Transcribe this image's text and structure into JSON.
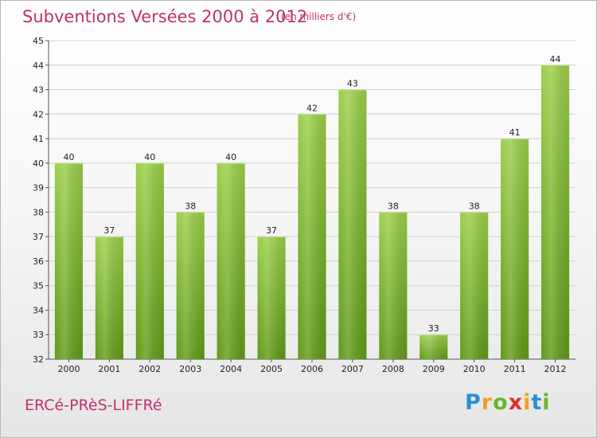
{
  "header": {
    "title": "Subventions Versées 2000 à 2012",
    "subtitle": "(en milliers d'€)"
  },
  "footer": {
    "commune": "ERCé-PRèS-LIFFRé",
    "logo_letters": [
      "P",
      "r",
      "o",
      "x",
      "i",
      "t",
      "i"
    ],
    "logo_colors": [
      "#2a8fd8",
      "#f0a020",
      "#6cb52d",
      "#e03030",
      "#f0a020",
      "#2a8fd8",
      "#6cb52d"
    ]
  },
  "chart_data": {
    "type": "bar",
    "title": "Subventions Versées 2000 à 2012",
    "subtitle": "(en milliers d'€)",
    "categories": [
      "2000",
      "2001",
      "2002",
      "2003",
      "2004",
      "2005",
      "2006",
      "2007",
      "2008",
      "2009",
      "2010",
      "2011",
      "2012"
    ],
    "values": [
      40,
      37,
      40,
      38,
      40,
      37,
      42,
      43,
      38,
      33,
      38,
      41,
      44
    ],
    "data_labels": [
      "40",
      "37",
      "40",
      "38",
      "40",
      "37",
      "42",
      "43",
      "38",
      "33",
      "38",
      "41",
      "44"
    ],
    "ylim": [
      32,
      45
    ],
    "yticks": [
      32,
      33,
      34,
      35,
      36,
      37,
      38,
      39,
      40,
      41,
      42,
      43,
      44,
      45
    ],
    "ytick_labels": [
      "32",
      "33",
      "34",
      "35",
      "36",
      "37",
      "38",
      "39",
      "40",
      "41",
      "42",
      "43",
      "44",
      "45"
    ],
    "grid": true,
    "bar_color_top": "#9bcf4a",
    "bar_color_bottom": "#5f9a18",
    "grid_color": "#d0d0d0",
    "text_color": "#c0306b"
  }
}
